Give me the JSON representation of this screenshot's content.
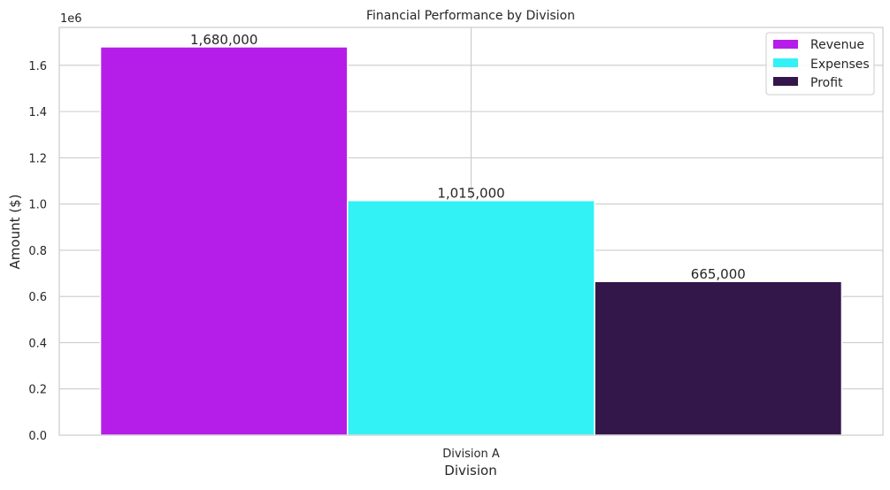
{
  "chart_data": {
    "type": "bar",
    "title": "Financial Performance by Division",
    "xlabel": "Division",
    "ylabel": "Amount ($)",
    "y_offset_label": "1e6",
    "categories": [
      "Division A"
    ],
    "series": [
      {
        "name": "Revenue",
        "values": [
          1680000
        ],
        "color": "#b51ee8",
        "label": "1,680,000"
      },
      {
        "name": "Expenses",
        "values": [
          1015000
        ],
        "color": "#33f2f5",
        "label": "1,015,000"
      },
      {
        "name": "Profit",
        "values": [
          665000
        ],
        "color": "#33174b",
        "label": "665,000"
      }
    ],
    "ylim": [
      0,
      1764000
    ],
    "yticks": [
      0,
      200000,
      400000,
      600000,
      800000,
      1000000,
      1200000,
      1400000,
      1600000
    ],
    "ytick_labels": [
      "0.0",
      "0.2",
      "0.4",
      "0.6",
      "0.8",
      "1.0",
      "1.2",
      "1.4",
      "1.6"
    ],
    "grid": true,
    "legend_position": "top-right",
    "colors": {
      "grid": "#cccccc",
      "axis": "#cccccc",
      "background": "#ffffff"
    }
  }
}
